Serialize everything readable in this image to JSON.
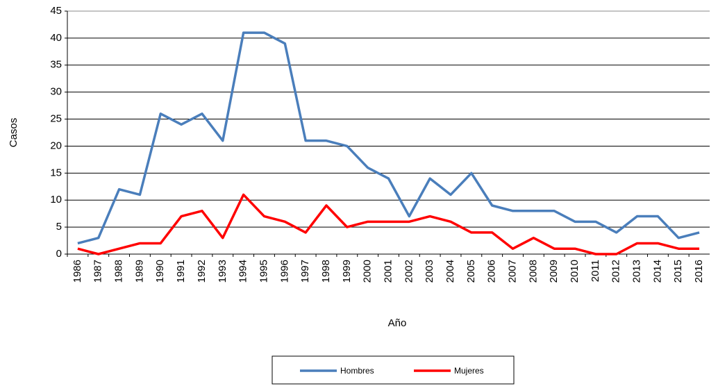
{
  "chart_data": {
    "type": "line",
    "x_label": "Año",
    "y_label": "Casos",
    "categories": [
      "1986",
      "1987",
      "1988",
      "1989",
      "1990",
      "1991",
      "1992",
      "1993",
      "1994",
      "1995",
      "1996",
      "1997",
      "1998",
      "1999",
      "2000",
      "2001",
      "2002",
      "2003",
      "2004",
      "2005",
      "2006",
      "2007",
      "2008",
      "2009",
      "2010",
      "2011",
      "2012",
      "2013",
      "2014",
      "2015",
      "2016"
    ],
    "series": [
      {
        "name": "Hombres",
        "color": "#4a7ebb",
        "values": [
          2,
          3,
          12,
          11,
          26,
          24,
          26,
          21,
          41,
          41,
          39,
          21,
          21,
          20,
          16,
          14,
          7,
          14,
          11,
          15,
          9,
          8,
          8,
          8,
          6,
          6,
          4,
          7,
          7,
          3,
          4
        ]
      },
      {
        "name": "Mujeres",
        "color": "#ff0000",
        "values": [
          1,
          0,
          1,
          2,
          2,
          7,
          8,
          3,
          11,
          7,
          6,
          4,
          9,
          5,
          6,
          6,
          6,
          7,
          6,
          4,
          4,
          1,
          3,
          1,
          1,
          0,
          0,
          2,
          2,
          1,
          1
        ]
      }
    ],
    "ylim": [
      0,
      45
    ],
    "yticks": [
      0,
      5,
      10,
      15,
      20,
      25,
      30,
      35,
      40,
      45
    ],
    "grid": true,
    "legend": "bottom"
  }
}
